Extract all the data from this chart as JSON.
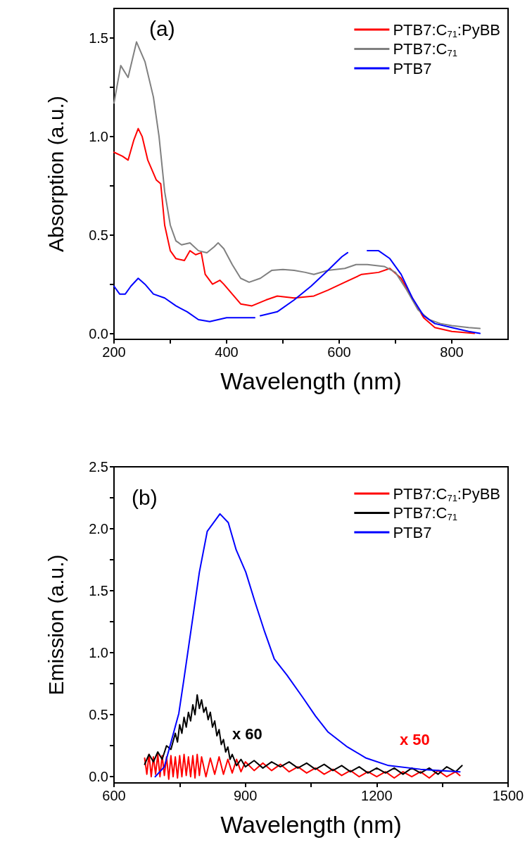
{
  "chart_data": [
    {
      "type": "line",
      "xlabel": "Wavelength (nm)",
      "ylabel": "Absorption (a.u.)",
      "annotations": [
        "(a)"
      ],
      "xlim": [
        200,
        900
      ],
      "ylim": [
        -0.03,
        1.65
      ],
      "xticks": [
        200,
        {
          "value": 300,
          "label": null
        },
        400,
        {
          "value": 500,
          "label": null
        },
        600,
        {
          "value": 700,
          "label": null
        },
        800
      ],
      "yticks": [
        {
          "value": 0,
          "label": "0.0"
        },
        {
          "value": 0.25,
          "label": null
        },
        {
          "value": 0.5,
          "label": "0.5"
        },
        {
          "value": 0.75,
          "label": null
        },
        {
          "value": 1,
          "label": "1.0"
        },
        {
          "value": 1.25,
          "label": null
        },
        {
          "value": 1.5,
          "label": "1.5"
        }
      ],
      "grid": false,
      "legend": "top right",
      "line_style": "solid",
      "marker": "none",
      "series": [
        {
          "name": "PTB7:C$_{71}$:PyBB",
          "color": "#ff0000",
          "x": [
            200,
            215,
            225,
            235,
            243,
            250,
            260,
            275,
            283,
            290,
            300,
            310,
            325,
            335,
            345,
            355,
            362,
            375,
            388,
            395,
            410,
            425,
            445,
            470,
            490,
            520,
            555,
            580,
            610,
            640,
            670,
            690,
            710,
            730,
            750,
            770,
            800,
            840
          ],
          "values": [
            0.92,
            0.9,
            0.88,
            0.98,
            1.04,
            1.0,
            0.88,
            0.78,
            0.76,
            0.55,
            0.42,
            0.38,
            0.37,
            0.42,
            0.4,
            0.41,
            0.3,
            0.25,
            0.27,
            0.25,
            0.2,
            0.15,
            0.14,
            0.17,
            0.19,
            0.18,
            0.19,
            0.22,
            0.26,
            0.3,
            0.31,
            0.33,
            0.28,
            0.18,
            0.08,
            0.03,
            0.01,
            0.0
          ]
        },
        {
          "name": "PTB7:C$_{71}$",
          "color": "#808080",
          "x": [
            200,
            212,
            225,
            240,
            255,
            270,
            280,
            290,
            300,
            310,
            320,
            335,
            350,
            365,
            378,
            385,
            395,
            410,
            425,
            440,
            460,
            480,
            500,
            520,
            540,
            555,
            580,
            610,
            630,
            650,
            680,
            700,
            720,
            740,
            760,
            780,
            800,
            830,
            850
          ],
          "values": [
            1.17,
            1.36,
            1.3,
            1.48,
            1.38,
            1.2,
            1.0,
            0.72,
            0.55,
            0.47,
            0.45,
            0.46,
            0.42,
            0.41,
            0.44,
            0.46,
            0.43,
            0.35,
            0.28,
            0.26,
            0.28,
            0.32,
            0.325,
            0.32,
            0.31,
            0.3,
            0.32,
            0.33,
            0.35,
            0.35,
            0.34,
            0.31,
            0.22,
            0.12,
            0.07,
            0.05,
            0.04,
            0.03,
            0.025
          ]
        },
        {
          "name": "PTB7",
          "color": "#0000ff",
          "x": [
            200,
            210,
            220,
            230,
            243,
            255,
            270,
            290,
            310,
            330,
            350,
            370,
            400,
            440,
            450,
            455,
            460,
            490,
            520,
            550,
            580,
            605,
            615,
            632,
            650,
            670,
            690,
            710,
            730,
            750,
            770,
            800,
            830,
            850
          ],
          "values": [
            0.24,
            0.2,
            0.2,
            0.24,
            0.28,
            0.25,
            0.2,
            0.18,
            0.14,
            0.11,
            0.07,
            0.06,
            0.08,
            0.08,
            0.08,
            null,
            0.09,
            0.11,
            0.17,
            0.24,
            0.32,
            0.39,
            0.41,
            null,
            0.42,
            0.42,
            0.38,
            0.3,
            0.18,
            0.09,
            0.05,
            0.03,
            0.01,
            0.0
          ]
        }
      ]
    },
    {
      "type": "line",
      "xlabel": "Wavelength (nm)",
      "ylabel": "Emission (a.u.)",
      "annotations": [
        "(b)",
        "x 60",
        "x 50"
      ],
      "xlim": [
        600,
        1500
      ],
      "ylim": [
        -0.05,
        2.5
      ],
      "xticks": [
        600,
        {
          "value": 750,
          "label": null
        },
        900,
        {
          "value": 1050,
          "label": null
        },
        1200,
        {
          "value": 1350,
          "label": null
        },
        1500
      ],
      "yticks": [
        {
          "value": 0,
          "label": "0.0"
        },
        {
          "value": 0.25,
          "label": null
        },
        {
          "value": 0.5,
          "label": "0.5"
        },
        {
          "value": 0.75,
          "label": null
        },
        {
          "value": 1,
          "label": "1.0"
        },
        {
          "value": 1.25,
          "label": null
        },
        {
          "value": 1.5,
          "label": "1.5"
        },
        {
          "value": 1.75,
          "label": null
        },
        {
          "value": 2,
          "label": "2.0"
        },
        {
          "value": 2.25,
          "label": null
        },
        {
          "value": 2.5,
          "label": "2.5"
        }
      ],
      "grid": false,
      "legend": "top right",
      "line_style": "solid",
      "marker": "none",
      "series": [
        {
          "name": "PTB7:C$_{71}$:PyBB",
          "color": "#ff0000",
          "x": [
            670,
            675,
            680,
            685,
            690,
            695,
            700,
            705,
            710,
            715,
            720,
            725,
            730,
            735,
            740,
            745,
            750,
            755,
            760,
            765,
            770,
            775,
            780,
            785,
            790,
            795,
            800,
            810,
            820,
            830,
            840,
            850,
            860,
            870,
            880,
            890,
            900,
            920,
            940,
            960,
            980,
            1000,
            1020,
            1040,
            1060,
            1080,
            1100,
            1120,
            1140,
            1160,
            1180,
            1200,
            1220,
            1240,
            1260,
            1280,
            1300,
            1320,
            1340,
            1360,
            1380,
            1390
          ],
          "values": [
            0.15,
            0.02,
            0.18,
            0.0,
            0.16,
            0.02,
            0.18,
            0.0,
            0.17,
            0.01,
            0.16,
            -0.02,
            0.17,
            0.0,
            0.16,
            -0.01,
            0.17,
            0.0,
            0.18,
            0.01,
            0.16,
            0.0,
            0.17,
            -0.01,
            0.18,
            0.01,
            0.16,
            0.0,
            0.15,
            0.02,
            0.16,
            0.02,
            0.14,
            0.03,
            0.14,
            0.04,
            0.12,
            0.05,
            0.11,
            0.05,
            0.1,
            0.04,
            0.08,
            0.03,
            0.07,
            0.02,
            0.06,
            0.01,
            0.05,
            0.0,
            0.04,
            0.0,
            0.04,
            -0.01,
            0.04,
            0.0,
            0.04,
            -0.01,
            0.05,
            0.0,
            0.04,
            0.01
          ]
        },
        {
          "name": "PTB7:C$_{71}$",
          "color": "#000000",
          "x": [
            670,
            680,
            690,
            700,
            710,
            720,
            730,
            740,
            745,
            750,
            755,
            760,
            765,
            770,
            775,
            780,
            785,
            790,
            795,
            800,
            805,
            810,
            815,
            820,
            825,
            830,
            835,
            840,
            845,
            850,
            855,
            860,
            865,
            870,
            880,
            890,
            900,
            920,
            940,
            960,
            980,
            1000,
            1020,
            1040,
            1060,
            1080,
            1100,
            1120,
            1140,
            1160,
            1180,
            1200,
            1220,
            1240,
            1260,
            1280,
            1300,
            1320,
            1340,
            1360,
            1380,
            1395
          ],
          "values": [
            0.1,
            0.18,
            0.12,
            0.2,
            0.14,
            0.25,
            0.22,
            0.35,
            0.28,
            0.42,
            0.35,
            0.48,
            0.4,
            0.52,
            0.45,
            0.58,
            0.5,
            0.66,
            0.55,
            0.62,
            0.52,
            0.56,
            0.46,
            0.52,
            0.4,
            0.45,
            0.33,
            0.38,
            0.26,
            0.3,
            0.2,
            0.24,
            0.14,
            0.18,
            0.09,
            0.14,
            0.08,
            0.13,
            0.07,
            0.12,
            0.08,
            0.12,
            0.07,
            0.11,
            0.06,
            0.1,
            0.05,
            0.09,
            0.04,
            0.08,
            0.03,
            0.07,
            0.03,
            0.07,
            0.02,
            0.07,
            0.03,
            0.07,
            0.02,
            0.08,
            0.04,
            0.09
          ]
        },
        {
          "name": "PTB7",
          "color": "#0000ff",
          "x": [
            694,
            715,
            748,
            759,
            777,
            795,
            813,
            842,
            861,
            879,
            901,
            922,
            944,
            966,
            995,
            1031,
            1060,
            1089,
            1133,
            1176,
            1227,
            1300,
            1390
          ],
          "values": [
            0.0,
            0.08,
            0.51,
            0.77,
            1.21,
            1.65,
            1.98,
            2.12,
            2.05,
            1.83,
            1.65,
            1.41,
            1.17,
            0.95,
            0.82,
            0.64,
            0.49,
            0.36,
            0.24,
            0.15,
            0.09,
            0.06,
            0.04
          ]
        }
      ]
    }
  ]
}
